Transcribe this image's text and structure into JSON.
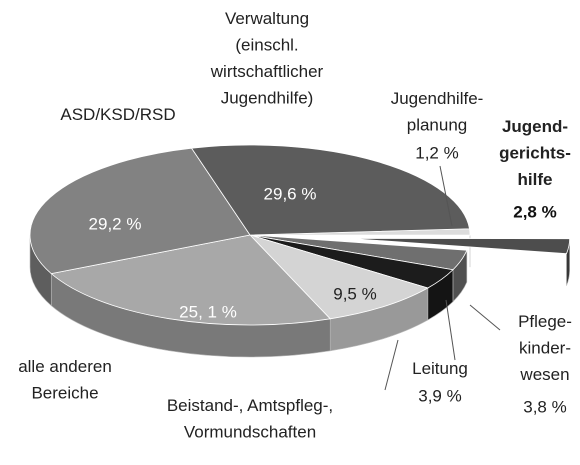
{
  "chart_data": {
    "type": "pie3d",
    "categories": [
      "Jugendhilfe-\nplanung",
      "Jugend-\ngerichts-\nhilfe",
      "Pflege-\nkinder-\nwesen",
      "Leitung",
      "Beistand-, Amtspfleg-,\nVormundschaften",
      "alle anderen\nBereiche",
      "ASD/KSD/RSD",
      "Verwaltung\n(einschl.\nwirtschaftlicher\nJugendhilfe)"
    ],
    "values": [
      1.2,
      2.8,
      3.8,
      3.9,
      9.5,
      25.1,
      29.2,
      29.6
    ],
    "value_labels": [
      "1,2 %",
      "2,8 %",
      "3,8 %",
      "3,9 %",
      "9,5 %",
      "25, 1 %",
      "29,2 %",
      "29,6 %"
    ],
    "colors": [
      "#dcdcdc",
      "#4d4d4d",
      "#6f6f6f",
      "#1c1c1c",
      "#d4d4d4",
      "#a8a8a8",
      "#828282",
      "#5c5c5c"
    ]
  }
}
